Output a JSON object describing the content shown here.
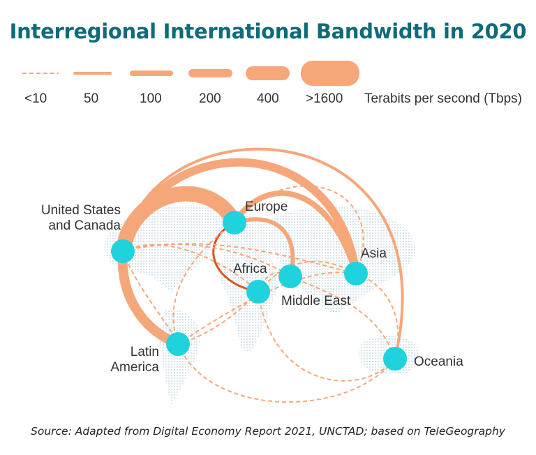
{
  "title": "Interregional International Bandwidth in 2020",
  "legend": {
    "items": [
      "<10",
      "50",
      "100",
      "200",
      "400",
      ">1600"
    ],
    "unit": "Terabits per second (Tbps)"
  },
  "regions": {
    "usc": [
      "United States",
      "and Canada"
    ],
    "europe": [
      "Europe"
    ],
    "asia": [
      "Asia"
    ],
    "africa": [
      "Africa"
    ],
    "middle_east": [
      "Middle East"
    ],
    "latin_america": [
      "Latin",
      "America"
    ],
    "oceania": [
      "Oceania"
    ]
  },
  "source": "Source: Adapted from Digital Economy Report 2021, UNCTAD; based on TeleGeography",
  "colors": {
    "title": "#0f6a7a",
    "link": "#f6a77a",
    "link_dark": "#d9531e",
    "node": "#1fd3dc",
    "map": "#d6e6ee"
  }
}
